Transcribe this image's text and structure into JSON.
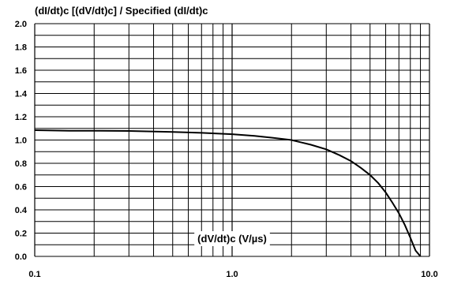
{
  "chart_data": {
    "type": "line",
    "title": "(dI/dt)c [(dV/dt)c] / Specified (dI/dt)c",
    "xlabel": "(dV/dt)c (V/µs)",
    "ylabel": "",
    "x_scale": "log",
    "xlim": [
      0.1,
      10.0
    ],
    "ylim": [
      0.0,
      2.0
    ],
    "grid": true,
    "x_ticks": [
      0.1,
      1.0,
      10.0
    ],
    "x_tick_labels": [
      "0.1",
      "1.0",
      "10.0"
    ],
    "y_ticks": [
      0.0,
      0.2,
      0.4,
      0.6,
      0.8,
      1.0,
      1.2,
      1.4,
      1.6,
      1.8,
      2.0
    ],
    "y_tick_labels": [
      "0.0",
      "0.2",
      "0.4",
      "0.6",
      "0.8",
      "1.0",
      "1.2",
      "1.4",
      "1.6",
      "1.8",
      "2.0"
    ],
    "series": [
      {
        "x": [
          0.1,
          0.15,
          0.2,
          0.3,
          0.5,
          0.7,
          1.0,
          1.3,
          1.6,
          2.0,
          2.5,
          3.0,
          3.5,
          4.0,
          4.5,
          5.0,
          5.5,
          6.0,
          6.5,
          7.0,
          7.5,
          8.0,
          8.5,
          9.0
        ],
        "y": [
          1.085,
          1.08,
          1.08,
          1.078,
          1.07,
          1.062,
          1.05,
          1.035,
          1.02,
          1.0,
          0.96,
          0.92,
          0.87,
          0.82,
          0.76,
          0.7,
          0.63,
          0.55,
          0.46,
          0.37,
          0.27,
          0.16,
          0.05,
          0.0
        ]
      }
    ]
  }
}
